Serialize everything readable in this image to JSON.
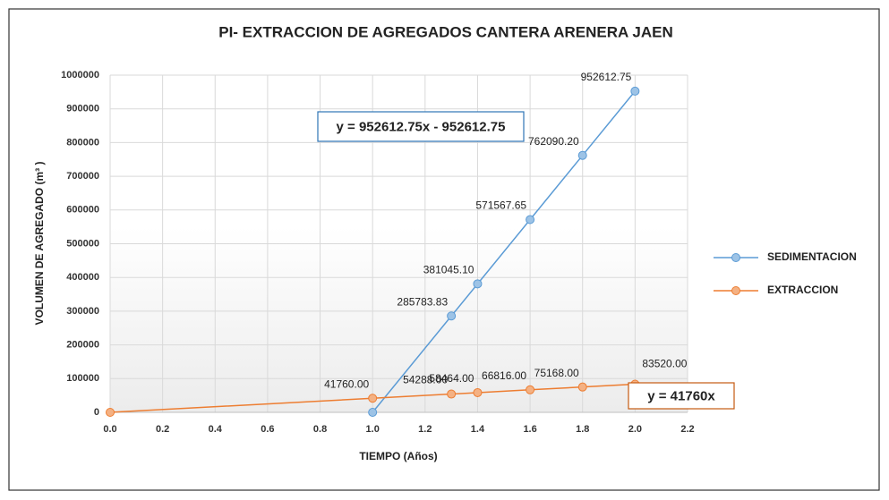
{
  "chart_data": {
    "type": "scatter",
    "title": "PI- EXTRACCION DE AGREGADOS CANTERA ARENERA JAEN",
    "x_label": "TIEMPO (Años)",
    "y_label": "VOLUMEN DE AGREGADO (m³ )",
    "xlim": [
      0,
      2.2
    ],
    "xticks": [
      {
        "value": 0,
        "label": "0.0"
      },
      0.2,
      0.4,
      0.6,
      0.8,
      {
        "value": 1,
        "label": "1.0"
      },
      1.2,
      1.4,
      1.6,
      1.8,
      {
        "value": 2,
        "label": "2.0"
      },
      2.2
    ],
    "ylim": [
      0,
      1000000
    ],
    "yticks": [
      0,
      100000,
      200000,
      300000,
      400000,
      500000,
      600000,
      700000,
      800000,
      900000,
      1000000
    ],
    "grid": true,
    "legend": "right",
    "series": [
      {
        "name": "SEDIMENTACION",
        "color": "#5b9bd5",
        "marker_fill": "#9dc3e6",
        "x": [
          1.0,
          1.3,
          1.4,
          1.6,
          1.8,
          2.0
        ],
        "values": [
          0,
          285783.83,
          381045.1,
          571567.65,
          762090.2,
          952612.75
        ],
        "value_labels": [
          null,
          "285783.83",
          "381045.10",
          "571567.65",
          "762090.20",
          "952612.75"
        ],
        "equation": "y = 952612.75x - 952612.75"
      },
      {
        "name": "EXTRACCION",
        "color": "#ed7d31",
        "marker_fill": "#f4b183",
        "x": [
          0,
          1.0,
          1.3,
          1.4,
          1.6,
          1.8,
          2.0
        ],
        "values": [
          0,
          41760,
          54288,
          58464,
          66816,
          75168,
          83520
        ],
        "value_labels": [
          null,
          "41760.00",
          "54288.00",
          "58464.00",
          "66816.00",
          "75168.00",
          "83520.00"
        ],
        "equation": "y = 41760x"
      }
    ]
  }
}
